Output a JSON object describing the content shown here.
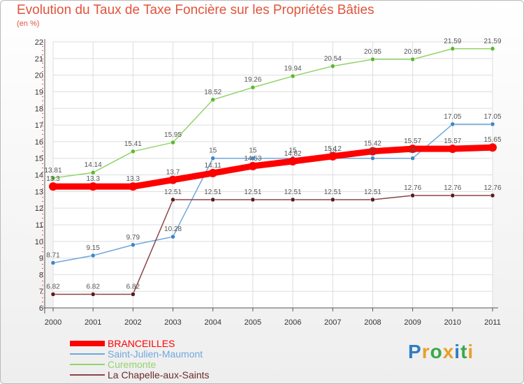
{
  "title": "Evolution du Taux de Taxe Foncière sur les Propriétés Bâties",
  "unit": "(en %)",
  "logo": {
    "text": "Proxiti",
    "letters": [
      "P",
      "r",
      "o",
      "x",
      "i",
      "t",
      "i"
    ],
    "colors": [
      "#2f7ec1",
      "#e8a027",
      "#3aa84a",
      "#e8a027",
      "#2f7ec1",
      "#3aa84a",
      "#e8a027"
    ]
  },
  "chart_data": {
    "type": "line",
    "title": "Evolution du Taux de Taxe Foncière sur les Propriétés Bâties",
    "ylabel": "(en %)",
    "xlabel": "",
    "categories": [
      "2000",
      "2001",
      "2002",
      "2003",
      "2004",
      "2005",
      "2006",
      "2007",
      "2008",
      "2009",
      "2010",
      "2011"
    ],
    "ylim": [
      6,
      22
    ],
    "yticks": [
      "6",
      "7",
      "8",
      "9",
      "10",
      "11",
      "12",
      "13",
      "14",
      "15",
      "16",
      "17",
      "18",
      "19",
      "20",
      "21",
      "22"
    ],
    "grid": true,
    "legend_position": "bottom-left",
    "series": [
      {
        "name": "BRANCEILLES",
        "color": "#ff0000",
        "width": 9,
        "dot": "#ff0000",
        "values": [
          13.3,
          13.3,
          13.3,
          13.7,
          14.11,
          14.53,
          14.82,
          15.12,
          15.42,
          15.57,
          15.57,
          15.65
        ],
        "labels": [
          "13.3",
          "13.3",
          "13.3",
          "13.7",
          "14.11",
          "14.53",
          "14.82",
          "15.12",
          "15.42",
          "15.57",
          "15.57",
          "15.65"
        ]
      },
      {
        "name": "Saint-Julien-Maumont",
        "color": "#6fa8dc",
        "width": 1.5,
        "dot": "#3d85c6",
        "values": [
          8.71,
          9.15,
          9.79,
          10.28,
          15,
          15,
          15,
          15,
          15,
          15,
          17.05,
          17.05
        ],
        "labels": [
          "8.71",
          "9.15",
          "9.79",
          "10.28",
          "15",
          "15",
          "15",
          "15",
          "15",
          "15",
          "17.05",
          "17.05"
        ]
      },
      {
        "name": "Curemonte",
        "color": "#93d46b",
        "width": 1.5,
        "dot": "#5cb82e",
        "values": [
          13.81,
          14.14,
          15.41,
          15.95,
          18.52,
          19.26,
          19.94,
          20.54,
          20.95,
          20.95,
          21.59,
          21.59
        ],
        "labels": [
          "13.81",
          "14.14",
          "15.41",
          "15.95",
          "18.52",
          "19.26",
          "19.94",
          "20.54",
          "20.95",
          "20.95",
          "21.59",
          "21.59"
        ]
      },
      {
        "name": "La Chapelle-aux-Saints",
        "color": "#8b4545",
        "width": 1.5,
        "dot": "#5c1a1a",
        "values": [
          6.82,
          6.82,
          6.82,
          12.51,
          12.51,
          12.51,
          12.51,
          12.51,
          12.51,
          12.76,
          12.76,
          12.76
        ],
        "labels": [
          "6.82",
          "6.82",
          "6.82",
          "12.51",
          "12.51",
          "12.51",
          "12.51",
          "12.51",
          "12.51",
          "12.76",
          "12.76",
          "12.76"
        ]
      }
    ]
  }
}
